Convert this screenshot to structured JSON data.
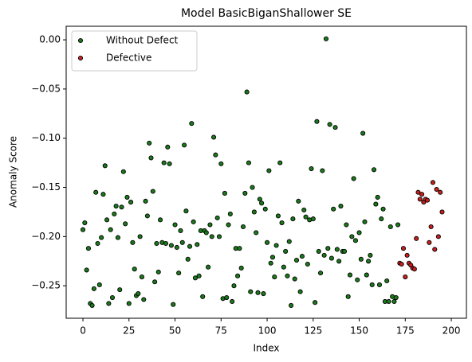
{
  "chart_data": {
    "type": "scatter",
    "title": "Model BasicBiganShallower SE",
    "x_label": "Index",
    "y_label": "Anomaly Score",
    "xlim": [
      -9.1,
      208.2
    ],
    "ylim": [
      -0.283,
      0.0138
    ],
    "xticks": [
      0,
      25,
      50,
      75,
      100,
      125,
      150,
      175,
      200
    ],
    "yticks": [
      {
        "value": 0,
        "label": "0.00"
      },
      {
        "value": -0.05,
        "label": "−0.05"
      },
      {
        "value": -0.1,
        "label": "−0.10"
      },
      {
        "value": -0.15,
        "label": "−0.15"
      },
      {
        "value": -0.2,
        "label": "−0.20"
      },
      {
        "value": -0.25,
        "label": "−0.25"
      }
    ],
    "legend": "upper left",
    "grid": false,
    "series": [
      {
        "name": "Without Defect",
        "color": "#1a7a1a",
        "x": [
          0,
          1,
          2,
          3,
          4,
          5,
          6,
          7,
          8,
          9,
          10,
          11,
          12,
          13,
          14,
          15,
          16,
          17,
          18,
          19,
          20,
          21,
          22,
          23,
          24,
          25,
          26,
          27,
          28,
          29,
          30,
          31,
          32,
          33,
          34,
          35,
          36,
          37,
          38,
          39,
          40,
          41,
          42,
          43,
          44,
          45,
          46,
          47,
          48,
          49,
          50,
          51,
          52,
          53,
          54,
          55,
          56,
          57,
          58,
          59,
          60,
          61,
          62,
          63,
          64,
          65,
          66,
          67,
          68,
          69,
          70,
          71,
          72,
          73,
          74,
          75,
          76,
          77,
          78,
          79,
          80,
          81,
          82,
          83,
          84,
          85,
          86,
          87,
          88,
          89,
          90,
          91,
          92,
          93,
          94,
          95,
          96,
          97,
          98,
          99,
          100,
          101,
          102,
          103,
          104,
          105,
          106,
          107,
          108,
          109,
          110,
          111,
          112,
          113,
          114,
          115,
          116,
          117,
          118,
          119,
          120,
          121,
          122,
          123,
          124,
          125,
          126,
          127,
          128,
          129,
          130,
          131,
          132,
          133,
          134,
          135,
          136,
          137,
          138,
          139,
          140,
          141,
          142,
          143,
          144,
          145,
          146,
          147,
          148,
          149,
          150,
          151,
          152,
          153,
          154,
          155,
          156,
          157,
          158,
          159,
          160,
          161,
          162,
          163,
          164,
          165,
          166,
          167,
          168,
          169,
          170,
          171
        ],
        "values": [
          -0.193,
          -0.186,
          -0.234,
          -0.212,
          -0.268,
          -0.27,
          -0.253,
          -0.155,
          -0.207,
          -0.249,
          -0.201,
          -0.157,
          -0.128,
          -0.183,
          -0.268,
          -0.193,
          -0.262,
          -0.177,
          -0.169,
          -0.201,
          -0.254,
          -0.17,
          -0.134,
          -0.187,
          -0.16,
          -0.268,
          -0.165,
          -0.206,
          -0.233,
          -0.26,
          -0.258,
          -0.2,
          -0.241,
          -0.264,
          -0.164,
          -0.179,
          -0.105,
          -0.12,
          -0.154,
          -0.246,
          -0.207,
          -0.236,
          -0.183,
          -0.206,
          -0.125,
          -0.207,
          -0.109,
          -0.126,
          -0.209,
          -0.269,
          -0.188,
          -0.211,
          -0.237,
          -0.194,
          -0.206,
          -0.107,
          -0.174,
          -0.223,
          -0.21,
          -0.085,
          -0.185,
          -0.242,
          -0.208,
          -0.24,
          -0.194,
          -0.261,
          -0.194,
          -0.196,
          -0.231,
          -0.188,
          -0.2,
          -0.099,
          -0.117,
          -0.181,
          -0.2,
          -0.126,
          -0.263,
          -0.156,
          -0.262,
          -0.188,
          -0.177,
          -0.266,
          -0.25,
          -0.212,
          -0.24,
          -0.212,
          -0.232,
          -0.19,
          -0.156,
          -0.053,
          -0.125,
          -0.256,
          -0.15,
          -0.175,
          -0.196,
          -0.257,
          -0.162,
          -0.166,
          -0.258,
          -0.172,
          -0.206,
          -0.133,
          -0.227,
          -0.221,
          -0.241,
          -0.209,
          -0.179,
          -0.125,
          -0.186,
          -0.231,
          -0.215,
          -0.24,
          -0.205,
          -0.27,
          -0.182,
          -0.243,
          -0.224,
          -0.164,
          -0.256,
          -0.22,
          -0.173,
          -0.18,
          -0.228,
          -0.183,
          -0.131,
          -0.182,
          -0.267,
          -0.083,
          -0.215,
          -0.237,
          -0.133,
          -0.219,
          0.001,
          -0.212,
          -0.086,
          -0.222,
          -0.172,
          -0.089,
          -0.213,
          -0.225,
          -0.169,
          -0.215,
          -0.215,
          -0.188,
          -0.261,
          -0.239,
          -0.2,
          -0.141,
          -0.204,
          -0.244,
          -0.196,
          -0.223,
          -0.095,
          -0.185,
          -0.239,
          -0.225,
          -0.219,
          -0.249,
          -0.132,
          -0.167,
          -0.16,
          -0.249,
          -0.182,
          -0.172,
          -0.266,
          -0.245,
          -0.266,
          -0.19,
          -0.261,
          -0.266,
          -0.262,
          -0.188
        ]
      },
      {
        "name": "Defective",
        "color": "#c8201e",
        "x": [
          172,
          173,
          174,
          175,
          176,
          177,
          178,
          179,
          180,
          181,
          182,
          183,
          184,
          185,
          186,
          187,
          188,
          189,
          190,
          191,
          192,
          193,
          194,
          195
        ],
        "values": [
          -0.227,
          -0.228,
          -0.212,
          -0.241,
          -0.219,
          -0.227,
          -0.229,
          -0.232,
          -0.233,
          -0.202,
          -0.155,
          -0.162,
          -0.157,
          -0.165,
          -0.162,
          -0.163,
          -0.206,
          -0.19,
          -0.145,
          -0.213,
          -0.152,
          -0.2,
          -0.155,
          -0.175
        ]
      }
    ]
  }
}
